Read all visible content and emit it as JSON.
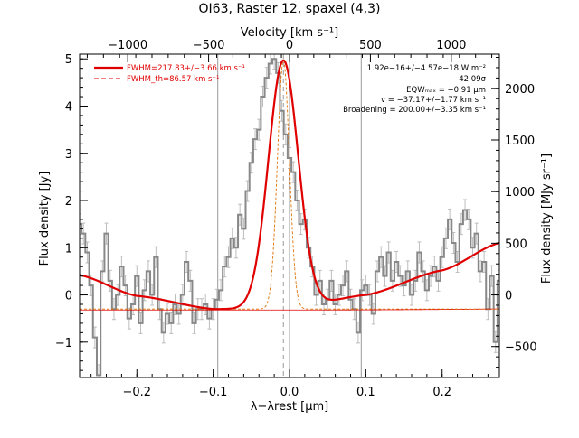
{
  "chart_data": {
    "type": "line",
    "title": "OI63, Raster 12, spaxel (4,3)",
    "xlabel": "λ−λrest [μm]",
    "ylabel": "Flux density [Jy]",
    "top_axis_label": "Velocity [km s⁻¹]",
    "right_axis_label": "Flux density [MJy sr⁻¹]",
    "xlim": [
      -0.275,
      0.275
    ],
    "ylim": [
      -1.75,
      5.1
    ],
    "x_ticks": [
      -0.2,
      -0.1,
      0.0,
      0.1,
      0.2
    ],
    "x_tick_labels": [
      "−0.2",
      "−0.1",
      "0.0",
      "0.1",
      "0.2"
    ],
    "y_ticks": [
      -1,
      0,
      1,
      2,
      3,
      4,
      5
    ],
    "y_tick_labels": [
      "−1",
      "0",
      "1",
      "2",
      "3",
      "4",
      "5"
    ],
    "top_ticks": [
      -1000,
      -500,
      0,
      500,
      1000
    ],
    "top_tick_labels": [
      "−1000",
      "−500",
      "0",
      "500",
      "1000"
    ],
    "right_ticks": [
      -500,
      0,
      500,
      1000,
      1500,
      2000
    ],
    "right_tick_labels": [
      "−500",
      "0",
      "500",
      "1000",
      "1500",
      "2000"
    ],
    "top_axis_microns_per_kms": 0.000212,
    "right_axis_mjysr_per_jy": 457,
    "vertical_lines_x": [
      -0.094,
      0.0,
      0.094
    ],
    "dashed_line_x": -0.008,
    "legend": {
      "placement": "top-left",
      "entries": [
        {
          "label": "FWHM=217.83+/−3.66 km s⁻¹",
          "style": "solid",
          "color": "#e00000"
        },
        {
          "label": "FWHM_th=86.57 km s⁻¹",
          "style": "dashed",
          "color": "#e00000"
        }
      ]
    },
    "annotations": [
      "1.92e−16+/−4.57e−18 W m⁻²",
      "42.09σ",
      "EQWₘₐₓ = −0.91 μm",
      "v = −37.17+/−1.77 km s⁻¹",
      "Broadening = 200.00+/−3.35 km s⁻¹"
    ],
    "series": [
      {
        "name": "data",
        "style": "steps",
        "color": "#888888",
        "x": [
          -0.275,
          -0.27,
          -0.265,
          -0.26,
          -0.255,
          -0.25,
          -0.245,
          -0.24,
          -0.235,
          -0.23,
          -0.225,
          -0.22,
          -0.215,
          -0.21,
          -0.205,
          -0.2,
          -0.195,
          -0.19,
          -0.185,
          -0.18,
          -0.175,
          -0.17,
          -0.165,
          -0.16,
          -0.155,
          -0.15,
          -0.145,
          -0.14,
          -0.135,
          -0.13,
          -0.125,
          -0.12,
          -0.115,
          -0.11,
          -0.105,
          -0.1,
          -0.095,
          -0.09,
          -0.085,
          -0.08,
          -0.075,
          -0.07,
          -0.065,
          -0.06,
          -0.055,
          -0.05,
          -0.045,
          -0.04,
          -0.035,
          -0.03,
          -0.025,
          -0.02,
          -0.015,
          -0.01,
          -0.005,
          0.0,
          0.005,
          0.01,
          0.015,
          0.02,
          0.025,
          0.03,
          0.035,
          0.04,
          0.045,
          0.05,
          0.055,
          0.06,
          0.065,
          0.07,
          0.075,
          0.08,
          0.085,
          0.09,
          0.095,
          0.1,
          0.105,
          0.11,
          0.115,
          0.12,
          0.125,
          0.13,
          0.135,
          0.14,
          0.145,
          0.15,
          0.155,
          0.16,
          0.165,
          0.17,
          0.175,
          0.18,
          0.185,
          0.19,
          0.195,
          0.2,
          0.205,
          0.21,
          0.215,
          0.22,
          0.225,
          0.23,
          0.235,
          0.24,
          0.245,
          0.25,
          0.255,
          0.26,
          0.265,
          0.27,
          0.275
        ],
        "y": [
          1.5,
          1.3,
          0.9,
          0.2,
          -0.9,
          -1.7,
          0.5,
          1.3,
          0.3,
          -0.3,
          0.0,
          0.6,
          0.2,
          -0.5,
          -0.2,
          0.4,
          -0.6,
          0.1,
          0.5,
          0.0,
          0.8,
          -0.3,
          -0.8,
          -0.4,
          -0.6,
          -0.2,
          -0.4,
          0.0,
          0.7,
          0.3,
          -0.6,
          -0.3,
          -0.3,
          -0.2,
          -0.5,
          -0.3,
          -0.1,
          0.1,
          0.6,
          0.8,
          1.2,
          1.0,
          1.7,
          1.4,
          2.2,
          2.8,
          3.3,
          3.5,
          4.2,
          4.6,
          4.9,
          5.0,
          4.7,
          3.9,
          3.4,
          2.9,
          2.6,
          2.0,
          1.5,
          1.6,
          1.0,
          0.6,
          0.0,
          0.3,
          -0.2,
          -0.1,
          0.3,
          -0.2,
          0.0,
          0.2,
          0.5,
          -0.1,
          -0.3,
          -0.8,
          0.1,
          0.2,
          0.0,
          -0.4,
          0.5,
          0.8,
          0.4,
          0.9,
          0.3,
          0.7,
          0.4,
          0.2,
          0.5,
          0.0,
          0.3,
          0.9,
          0.5,
          0.1,
          0.4,
          0.6,
          0.3,
          0.8,
          1.2,
          1.6,
          1.1,
          0.7,
          1.5,
          1.8,
          1.6,
          1.0,
          1.3,
          0.5,
          0.7,
          -0.3,
          0.4,
          -1.0,
          0.3
        ]
      },
      {
        "name": "fit",
        "style": "smooth",
        "color": "#e00000",
        "continuum_x": [
          -0.275,
          -0.2,
          -0.1,
          0.0,
          0.1,
          0.2,
          0.275
        ],
        "continuum_y": [
          0.42,
          -0.02,
          -0.3,
          -0.3,
          0.0,
          0.52,
          1.1
        ],
        "gaussian_center": -0.008,
        "gaussian_peak": 5.27,
        "gaussian_fwhm": 0.046
      },
      {
        "name": "fit_thermal",
        "style": "dashed",
        "color": "#e07000",
        "gaussian_center": -0.008,
        "gaussian_peak": 5.27,
        "gaussian_fwhm": 0.0183
      }
    ]
  }
}
